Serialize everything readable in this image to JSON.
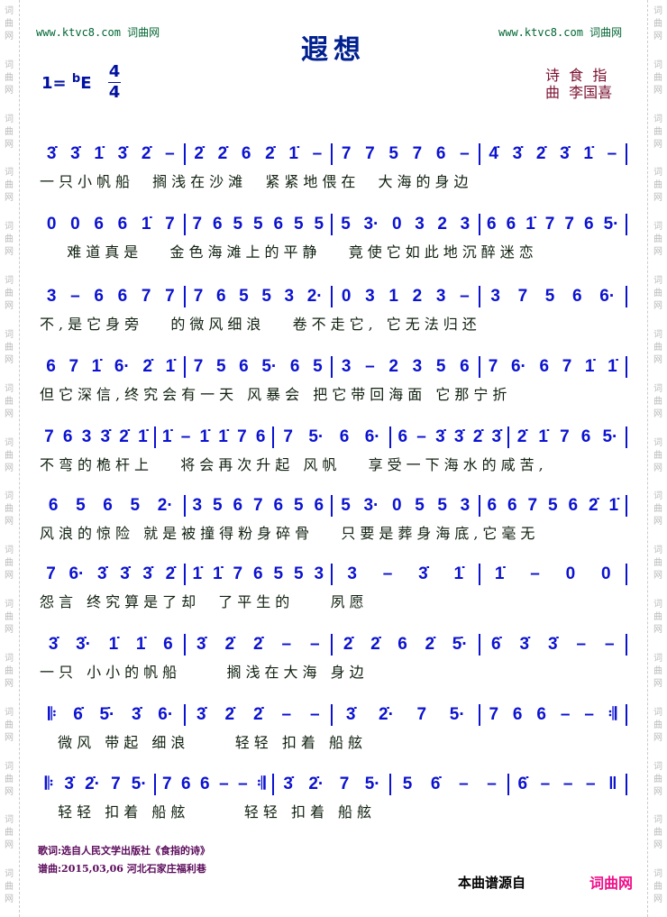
{
  "watermark": {
    "left": "www.ktvc8.com 词曲网",
    "right": "www.ktvc8.com 词曲网",
    "margin_text": "词曲网"
  },
  "title": "遐想",
  "key": {
    "prefix": "1=",
    "flat": "b",
    "note": "E"
  },
  "meter": {
    "top": "4",
    "bottom": "4"
  },
  "credits": {
    "lyricist": "诗  食  指",
    "composer": "曲  李国喜"
  },
  "lines": [
    {
      "measures": [
        "3̇ 3̇ 1̇ 3̇ 2̇ –",
        "2̇ 2̇ 6 2̇ 1̇ –",
        "7 7 5 7 6 –",
        "4̇ 3̇ 2̇ 3̇ 1̇ –"
      ],
      "lyrics": "一只小帆船  搁浅在沙滩  紧紧地偎在  大海的身边"
    },
    {
      "measures": [
        "0 0 6 6 1̇ 7",
        "7 6 5 5 6 5 5",
        "5 3· 0 3 2 3",
        "6 6 1̇ 7 7 6 5·"
      ],
      "lyrics": "   难道真是   金色海滩上的平静   竟使它如此地沉醉迷恋"
    },
    {
      "measures": [
        "3 – 6 6 7 7",
        "7 6 5 5 3 2·",
        "0 3 1 2 3 –",
        "3 7 5 6 6·"
      ],
      "lyrics": "不,是它身旁   的微风细浪   卷不走它, 它无法归还"
    },
    {
      "measures": [
        "6 7 1̇ 6· 2̇ 1̇",
        "7 5 6 5· 6 5",
        "3 – 2 3 5 6",
        "7 6· 6 7 1̇ 1̇"
      ],
      "lyrics": "但它深信,终究会有一天 风暴会 把它带回海面 它那宁折"
    },
    {
      "measures": [
        "7 6 3 3̇ 2̇ 1̇",
        "1̇ – 1̇ 1̇ 7 6",
        "7 5· 6 6·",
        "6 – 3̇ 3̇ 2̇ 3̇",
        "2̇ 1̇ 7 6 5·"
      ],
      "lyrics": "不弯的桅杆上   将会再次升起 风帆   享受一下海水的咸苦,"
    },
    {
      "measures": [
        "6 5 6 5 2·",
        "3 5 6 7 6 5 6",
        "5 3· 0 5 5 3",
        "6 6 7 5 6 2̇ 1̇"
      ],
      "lyrics": "风浪的惊险 就是被撞得粉身碎骨   只要是葬身海底,它毫无"
    },
    {
      "measures": [
        "7 6· 3̇ 3̇ 3̇ 2̇",
        "1̇ 1̇ 7 6 5 5 3",
        "3 – 3̇ 1̇",
        "1̇ – 0 0"
      ],
      "lyrics": "怨言 终究算是了却  了平生的    夙愿"
    },
    {
      "measures": [
        "3̇ 3̇· 1̇ 1̇ 6",
        "3̇ 2̇ 2̇ – –",
        "2̇ 2̇ 6 2̇ 5̇·",
        "6̇ 3̇ 3̇ – –"
      ],
      "lyrics": "一只 小小的帆船     搁浅在大海 身边"
    },
    {
      "measures": [
        "𝄆 6̇ 5̇· 3̇ 6·",
        "3̇ 2̇ 2̇ – –",
        "3̇ 2̇· 7 5·",
        "7 6 6 – – 𝄇"
      ],
      "lyrics": "  微风 带起 细浪     轻轻 扣着 船舷"
    },
    {
      "measures": [
        "𝄆 3̇ 2̇· 7 5·",
        "7 6 6 – – 𝄇",
        "3̇ 2̇· 7 5·",
        "5 6̇ – –",
        "6̇ – – – ‖"
      ],
      "lyrics": "  轻轻 扣着 船舷      轻轻 扣着 船舷"
    }
  ],
  "footer": {
    "lyrics_source": "歌词:选自人民文学出版社《食指的诗》",
    "composed": "谱曲:2015,03,06 河北石家庄福利巷",
    "source_label": "本曲谱源自",
    "source_site": "词曲网"
  },
  "colors": {
    "notes": "#0b12d0",
    "title": "#00208f",
    "credits": "#7a1030",
    "site": "#f0108a"
  }
}
